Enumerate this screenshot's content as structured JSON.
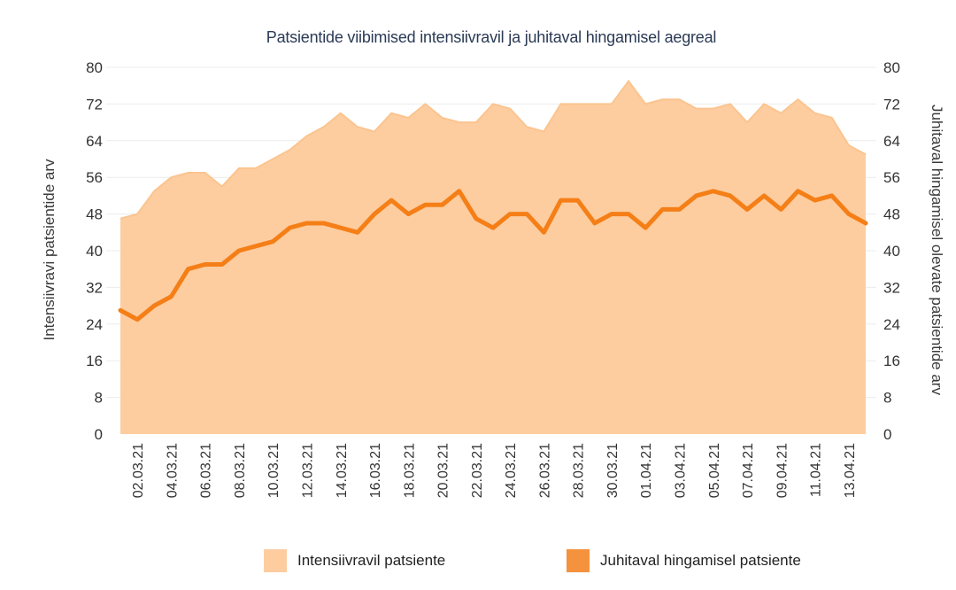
{
  "chart_data": {
    "type": "line",
    "title": "Patsientide viibimised intensiivravil ja juhitaval hingamisel aegreal",
    "ylabel_left": "Intensiivravi patsientide arv",
    "ylabel_right": "Juhitaval hingamisel olevate patsientide arv",
    "ylim": [
      0,
      80
    ],
    "yticks": [
      0,
      8,
      16,
      24,
      32,
      40,
      48,
      56,
      64,
      72,
      80
    ],
    "xtick_labels": [
      "02.03.21",
      "04.03.21",
      "06.03.21",
      "08.03.21",
      "10.03.21",
      "12.03.21",
      "14.03.21",
      "16.03.21",
      "18.03.21",
      "20.03.21",
      "22.03.21",
      "24.03.21",
      "26.03.21",
      "28.03.21",
      "30.03.21",
      "01.04.21",
      "03.04.21",
      "05.04.21",
      "07.04.21",
      "09.04.21",
      "11.04.21",
      "13.04.21"
    ],
    "grid": true,
    "legend_position": "bottom",
    "series": [
      {
        "name": "Intensiivravil patsiente",
        "style": "area",
        "color": "#fdcda0",
        "values": [
          47,
          48,
          53,
          56,
          57,
          57,
          54,
          58,
          58,
          60,
          62,
          65,
          67,
          70,
          67,
          66,
          70,
          69,
          72,
          69,
          68,
          68,
          72,
          71,
          67,
          66,
          72,
          72,
          72,
          72,
          77,
          72,
          73,
          73,
          71,
          71,
          72,
          68,
          72,
          70,
          73,
          70,
          69,
          63,
          61
        ]
      },
      {
        "name": "Juhitaval hingamisel patsiente",
        "style": "line",
        "color": "#f57f17",
        "values": [
          27,
          25,
          28,
          30,
          36,
          37,
          37,
          40,
          41,
          42,
          45,
          46,
          46,
          45,
          44,
          48,
          51,
          48,
          50,
          50,
          53,
          47,
          45,
          48,
          48,
          44,
          51,
          51,
          46,
          48,
          48,
          45,
          49,
          49,
          52,
          53,
          52,
          49,
          52,
          49,
          53,
          51,
          52,
          48,
          46
        ]
      }
    ]
  }
}
